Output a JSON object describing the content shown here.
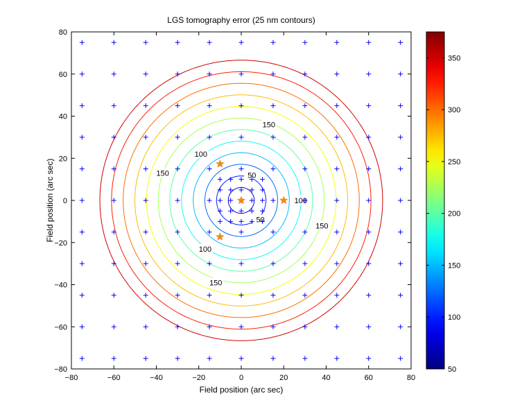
{
  "chart_data": {
    "type": "contour",
    "title": "LGS tomography error (25 nm contours)",
    "xlabel": "Field position (arc sec)",
    "ylabel": "Field position (arc sec)",
    "xlim": [
      -80,
      80
    ],
    "ylim": [
      -80,
      80
    ],
    "xticks": [
      -80,
      -60,
      -40,
      -20,
      0,
      20,
      40,
      60,
      80
    ],
    "yticks": [
      -80,
      -60,
      -40,
      -20,
      0,
      20,
      40,
      60,
      80
    ],
    "grid": false,
    "contour_levels": [
      50,
      75,
      100,
      125,
      150,
      175,
      200,
      225,
      250,
      275,
      300,
      325,
      350
    ],
    "contour_field_model": {
      "center": [
        0,
        0
      ],
      "base": 47,
      "slope": 4.55
    },
    "contour_labels": [
      {
        "text": "50",
        "x": 5,
        "y": 12
      },
      {
        "text": "50",
        "x": 9,
        "y": -9
      },
      {
        "text": "100",
        "x": -19,
        "y": 22
      },
      {
        "text": "100",
        "x": 28,
        "y": 0
      },
      {
        "text": "100",
        "x": -17,
        "y": -23
      },
      {
        "text": "150",
        "x": 13,
        "y": 36
      },
      {
        "text": "150",
        "x": -37,
        "y": 13
      },
      {
        "text": "150",
        "x": 38,
        "y": -12
      },
      {
        "text": "150",
        "x": -12,
        "y": -39
      }
    ],
    "colorbar": {
      "colormap": "jet",
      "range": [
        50,
        375
      ],
      "ticks": [
        50,
        100,
        150,
        200,
        250,
        300,
        350
      ]
    },
    "sample_points": {
      "marker": "+",
      "color": "#0000ff",
      "grid_x": [
        -75,
        -60,
        -45,
        -30,
        -15,
        0,
        15,
        30,
        45,
        60,
        75
      ],
      "grid_y": [
        -75,
        -60,
        -45,
        -30,
        -15,
        0,
        15,
        30,
        45,
        60,
        75
      ],
      "inner_grid_x": [
        -10,
        -5,
        0,
        5,
        10
      ],
      "inner_grid_y": [
        -10,
        -5,
        0,
        5,
        10
      ]
    },
    "guide_stars": {
      "marker": "star",
      "color": "#ee8a1e",
      "points": [
        [
          0,
          0
        ],
        [
          20,
          0
        ],
        [
          -10,
          17.3
        ],
        [
          -10,
          -17.3
        ]
      ]
    }
  }
}
